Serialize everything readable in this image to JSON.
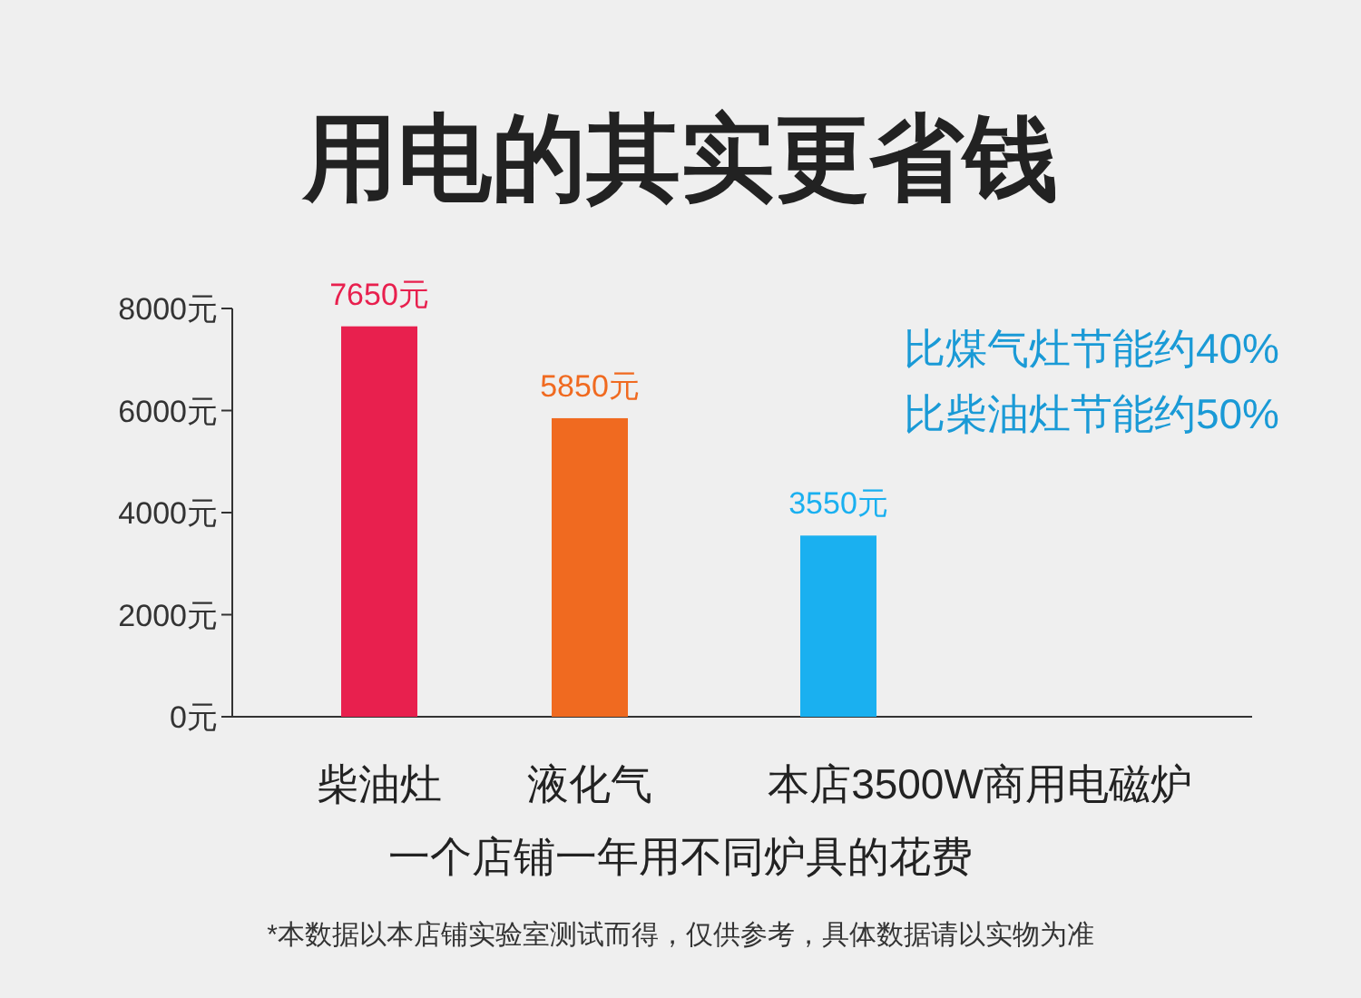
{
  "chart_data": {
    "type": "bar",
    "title": "用电的其实更省钱",
    "xlabel": "一个店铺一年用不同炉具的花费",
    "categories": [
      "柴油灶",
      "液化气",
      "本店3500W商用电磁炉"
    ],
    "values": [
      7650,
      5850,
      3550
    ],
    "colors": [
      "#e8204e",
      "#f06a20",
      "#1ab0f0"
    ],
    "value_labels": [
      "7650元",
      "5850元",
      "3550元"
    ],
    "ylim": [
      0,
      8000
    ],
    "yticks": [
      {
        "value": 0,
        "label": "0元"
      },
      {
        "value": 2000,
        "label": "2000元"
      },
      {
        "value": 4000,
        "label": "4000元"
      },
      {
        "value": 6000,
        "label": "6000元"
      },
      {
        "value": 8000,
        "label": "8000元"
      }
    ],
    "grid": false,
    "annotations": [
      "比煤气灶节能约40%",
      "比柴油灶节能约50%",
      "*本数据以本店铺实验室测试而得，仅供参考，具体数据请以实物为准"
    ]
  }
}
